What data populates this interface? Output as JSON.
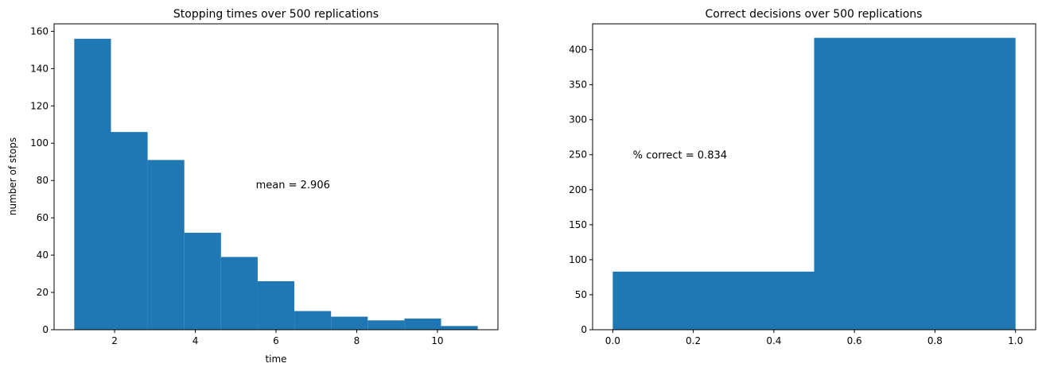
{
  "chart_data": [
    {
      "type": "bar",
      "title": "Stopping times over 500 replications",
      "xlabel": "time",
      "ylabel": "number of stops",
      "xlim": [
        0.5,
        11.5
      ],
      "ylim": [
        0,
        164
      ],
      "xticks": [
        2,
        4,
        6,
        8,
        10
      ],
      "yticks": [
        0,
        20,
        40,
        60,
        80,
        100,
        120,
        140,
        160
      ],
      "bin_edges": [
        1,
        1.9091,
        2.8182,
        3.7273,
        4.6364,
        5.5455,
        6.4545,
        7.3636,
        8.2727,
        9.1818,
        10.0909,
        11
      ],
      "values": [
        156,
        106,
        91,
        52,
        39,
        26,
        10,
        7,
        5,
        6,
        2
      ],
      "annotation": {
        "text": "mean = 2.906",
        "x": 5.5,
        "y": 78
      },
      "bar_color": "#1f77b4",
      "grid": false
    },
    {
      "type": "bar",
      "title": "Correct decisions over 500 replications",
      "xlabel": "",
      "ylabel": "",
      "xlim": [
        -0.05,
        1.05
      ],
      "ylim": [
        0,
        437
      ],
      "xticks": [
        0.0,
        0.2,
        0.4,
        0.6,
        0.8,
        1.0
      ],
      "xtick_labels": [
        "0.0",
        "0.2",
        "0.4",
        "0.6",
        "0.8",
        "1.0"
      ],
      "yticks": [
        0,
        50,
        100,
        150,
        200,
        250,
        300,
        350,
        400
      ],
      "bin_edges": [
        0,
        0.5,
        1
      ],
      "values": [
        83,
        417
      ],
      "annotation": {
        "text": "% correct = 0.834",
        "x": 0.05,
        "y": 250
      },
      "bar_color": "#1f77b4",
      "grid": false
    }
  ]
}
